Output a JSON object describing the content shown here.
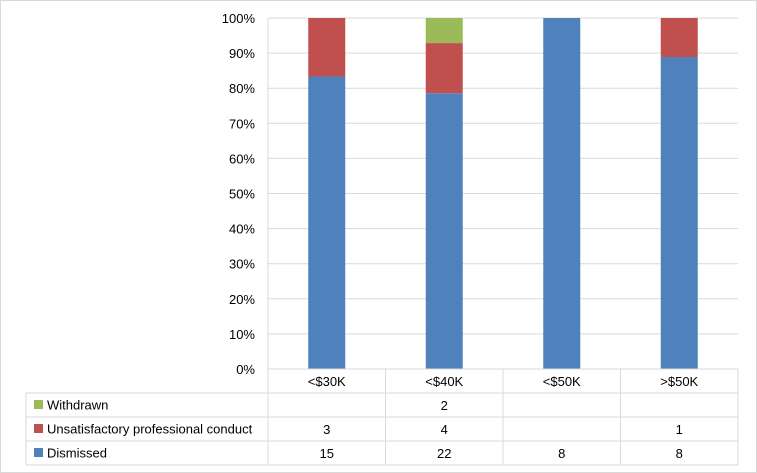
{
  "chart_data": {
    "type": "bar",
    "stacked": "percent",
    "categories": [
      "<$30K",
      "<$40K",
      "<$50K",
      ">$50K"
    ],
    "series": [
      {
        "name": "Dismissed",
        "values": [
          15,
          22,
          8,
          8
        ],
        "color": "#4f81bd"
      },
      {
        "name": "Unsatisfactory professional conduct",
        "values": [
          3,
          4,
          null,
          1
        ],
        "color": "#c0504d"
      },
      {
        "name": "Withdrawn",
        "values": [
          null,
          2,
          null,
          null
        ],
        "color": "#9bbb59"
      }
    ],
    "y_ticks": [
      "0%",
      "10%",
      "20%",
      "30%",
      "40%",
      "50%",
      "60%",
      "70%",
      "80%",
      "90%",
      "100%"
    ],
    "ylim": [
      0,
      100
    ],
    "grid": true,
    "legend": "data-table",
    "data_table": true
  }
}
